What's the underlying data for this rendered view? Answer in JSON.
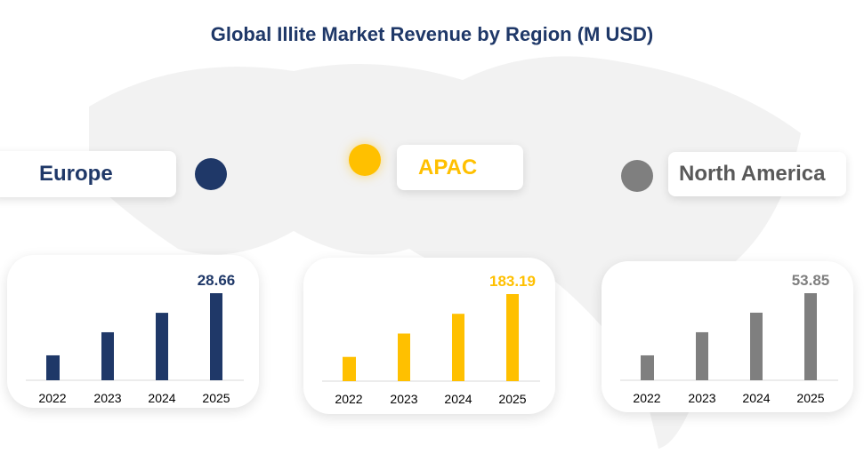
{
  "title": "Global Illite Market Revenue by Region (M USD)",
  "colors": {
    "Europe": "#1f3868",
    "APAC": "#ffc000",
    "North America": "#7f7f7f"
  },
  "chart_data": [
    {
      "type": "bar",
      "region": "Europe",
      "categories": [
        "2022",
        "2023",
        "2024",
        "2025"
      ],
      "values": [
        8.2,
        15.8,
        22.2,
        28.66
      ],
      "data_labels": [
        "",
        "",
        "",
        "28.66"
      ],
      "color": "#1f3868"
    },
    {
      "type": "bar",
      "region": "APAC",
      "categories": [
        "2022",
        "2023",
        "2024",
        "2025"
      ],
      "values": [
        51.0,
        100.1,
        141.7,
        183.19
      ],
      "data_labels": [
        "",
        "",
        "",
        "183.19"
      ],
      "color": "#ffc000"
    },
    {
      "type": "bar",
      "region": "North America",
      "categories": [
        "2022",
        "2023",
        "2024",
        "2025"
      ],
      "values": [
        15.4,
        29.7,
        41.8,
        53.85
      ],
      "data_labels": [
        "",
        "",
        "",
        "53.85"
      ],
      "color": "#7f7f7f"
    }
  ]
}
